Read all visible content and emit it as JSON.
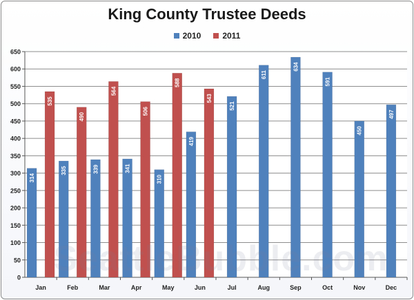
{
  "chart_data": {
    "type": "bar",
    "title": "King County Trustee Deeds",
    "categories": [
      "Jan",
      "Feb",
      "Mar",
      "Apr",
      "May",
      "Jun",
      "Jul",
      "Aug",
      "Sep",
      "Oct",
      "Nov",
      "Dec"
    ],
    "series": [
      {
        "name": "2010",
        "color": "#4f81bd",
        "values": [
          314,
          335,
          339,
          341,
          310,
          419,
          521,
          611,
          634,
          591,
          450,
          497
        ]
      },
      {
        "name": "2011",
        "color": "#c0504d",
        "values": [
          535,
          490,
          564,
          506,
          588,
          543,
          null,
          null,
          null,
          null,
          null,
          null
        ]
      }
    ],
    "ylim": [
      0,
      650
    ],
    "yticks": [
      0,
      50,
      100,
      150,
      200,
      250,
      300,
      350,
      400,
      450,
      500,
      550,
      600,
      650
    ],
    "grid": true,
    "legend_position": "top-center"
  },
  "watermark": "SeattleBubble.com"
}
